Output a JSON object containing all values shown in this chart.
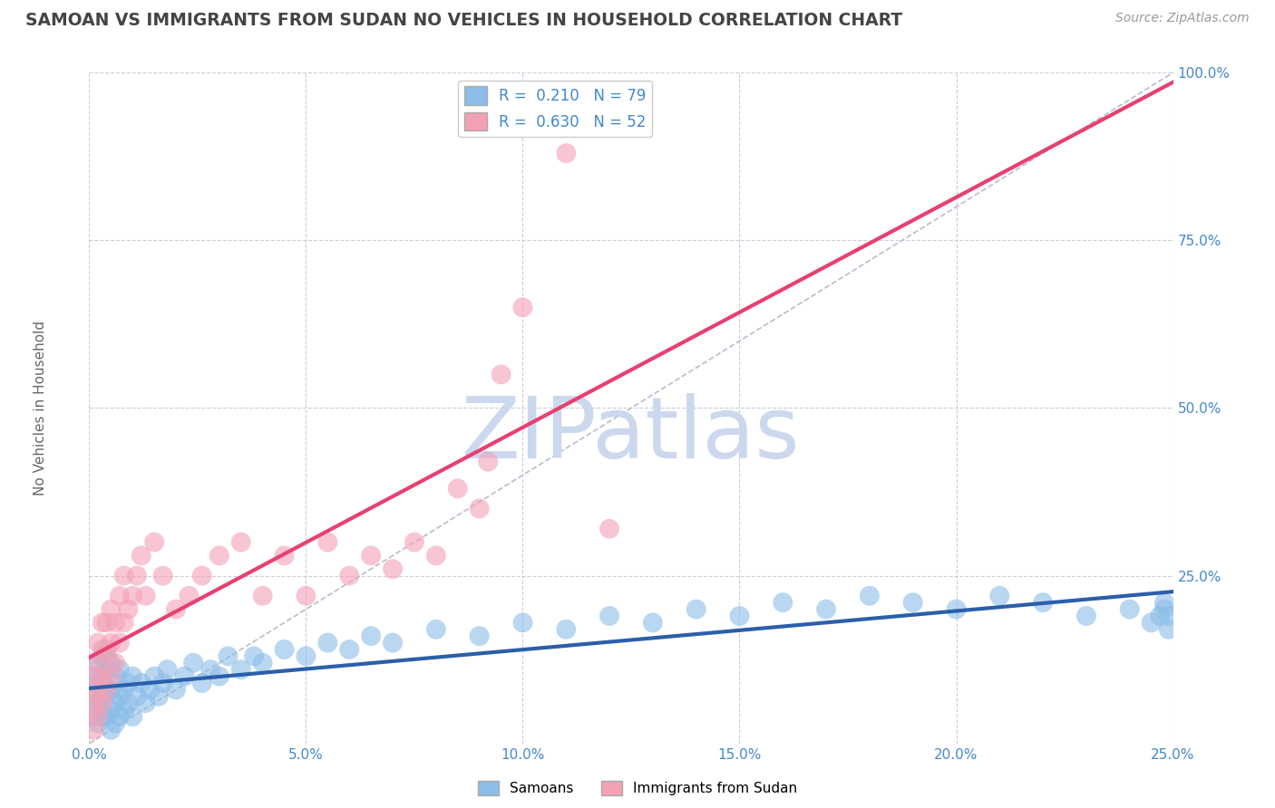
{
  "title": "SAMOAN VS IMMIGRANTS FROM SUDAN NO VEHICLES IN HOUSEHOLD CORRELATION CHART",
  "source_text": "Source: ZipAtlas.com",
  "ylabel": "No Vehicles in Household",
  "xlim": [
    0.0,
    0.25
  ],
  "ylim": [
    0.0,
    1.0
  ],
  "xticks": [
    0.0,
    0.05,
    0.1,
    0.15,
    0.2,
    0.25
  ],
  "xtick_labels": [
    "0.0%",
    "5.0%",
    "10.0%",
    "15.0%",
    "20.0%",
    "25.0%"
  ],
  "yticks": [
    0.25,
    0.5,
    0.75,
    1.0
  ],
  "ytick_labels": [
    "25.0%",
    "50.0%",
    "75.0%",
    "100.0%"
  ],
  "legend_r1": "R =  0.210   N = 79",
  "legend_r2": "R =  0.630   N = 52",
  "color_samoan": "#8BBDE8",
  "color_sudan": "#F4A0B5",
  "color_line_samoan": "#2B5FAA",
  "color_line_sudan": "#E84070",
  "color_ref_line": "#BBBBCC",
  "background_color": "#FFFFFF",
  "grid_color": "#CCCCDD",
  "watermark": "ZIPatlas",
  "watermark_color": "#CBD8EE",
  "title_color": "#444444",
  "axis_label_color": "#666666",
  "tick_color": "#4488CC",
  "samoan_x": [
    0.001,
    0.001,
    0.001,
    0.002,
    0.002,
    0.002,
    0.002,
    0.003,
    0.003,
    0.003,
    0.003,
    0.003,
    0.004,
    0.004,
    0.004,
    0.004,
    0.005,
    0.005,
    0.005,
    0.005,
    0.006,
    0.006,
    0.006,
    0.007,
    0.007,
    0.007,
    0.008,
    0.008,
    0.009,
    0.009,
    0.01,
    0.01,
    0.011,
    0.012,
    0.013,
    0.014,
    0.015,
    0.016,
    0.017,
    0.018,
    0.02,
    0.022,
    0.024,
    0.026,
    0.028,
    0.03,
    0.032,
    0.035,
    0.038,
    0.04,
    0.045,
    0.05,
    0.055,
    0.06,
    0.065,
    0.07,
    0.08,
    0.09,
    0.1,
    0.11,
    0.12,
    0.13,
    0.14,
    0.15,
    0.16,
    0.17,
    0.18,
    0.19,
    0.2,
    0.21,
    0.22,
    0.23,
    0.24,
    0.245,
    0.248,
    0.249,
    0.249,
    0.248,
    0.247
  ],
  "samoan_y": [
    0.04,
    0.07,
    0.1,
    0.03,
    0.06,
    0.09,
    0.12,
    0.04,
    0.07,
    0.1,
    0.13,
    0.05,
    0.04,
    0.08,
    0.11,
    0.14,
    0.05,
    0.08,
    0.12,
    0.02,
    0.06,
    0.1,
    0.03,
    0.07,
    0.11,
    0.04,
    0.08,
    0.05,
    0.09,
    0.06,
    0.1,
    0.04,
    0.07,
    0.09,
    0.06,
    0.08,
    0.1,
    0.07,
    0.09,
    0.11,
    0.08,
    0.1,
    0.12,
    0.09,
    0.11,
    0.1,
    0.13,
    0.11,
    0.13,
    0.12,
    0.14,
    0.13,
    0.15,
    0.14,
    0.16,
    0.15,
    0.17,
    0.16,
    0.18,
    0.17,
    0.19,
    0.18,
    0.2,
    0.19,
    0.21,
    0.2,
    0.22,
    0.21,
    0.2,
    0.22,
    0.21,
    0.19,
    0.2,
    0.18,
    0.2,
    0.19,
    0.17,
    0.21,
    0.19
  ],
  "sudan_x": [
    0.001,
    0.001,
    0.001,
    0.001,
    0.002,
    0.002,
    0.002,
    0.002,
    0.003,
    0.003,
    0.003,
    0.003,
    0.004,
    0.004,
    0.004,
    0.005,
    0.005,
    0.005,
    0.006,
    0.006,
    0.007,
    0.007,
    0.008,
    0.008,
    0.009,
    0.01,
    0.011,
    0.012,
    0.013,
    0.015,
    0.017,
    0.02,
    0.023,
    0.026,
    0.03,
    0.035,
    0.04,
    0.045,
    0.05,
    0.055,
    0.06,
    0.065,
    0.07,
    0.075,
    0.08,
    0.09,
    0.095,
    0.1,
    0.11,
    0.12,
    0.085,
    0.092
  ],
  "sudan_y": [
    0.02,
    0.05,
    0.08,
    0.12,
    0.04,
    0.07,
    0.1,
    0.15,
    0.06,
    0.1,
    0.14,
    0.18,
    0.08,
    0.13,
    0.18,
    0.1,
    0.15,
    0.2,
    0.12,
    0.18,
    0.15,
    0.22,
    0.18,
    0.25,
    0.2,
    0.22,
    0.25,
    0.28,
    0.22,
    0.3,
    0.25,
    0.2,
    0.22,
    0.25,
    0.28,
    0.3,
    0.22,
    0.28,
    0.22,
    0.3,
    0.25,
    0.28,
    0.26,
    0.3,
    0.28,
    0.35,
    0.55,
    0.65,
    0.88,
    0.32,
    0.38,
    0.42
  ]
}
